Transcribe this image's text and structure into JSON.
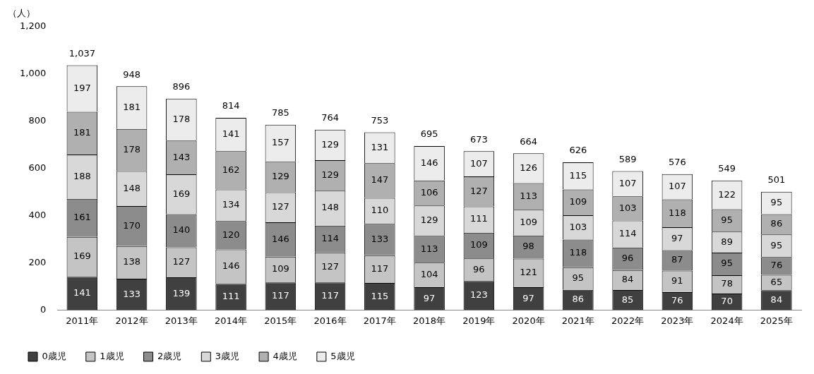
{
  "chart_data": {
    "type": "bar",
    "stacked": true,
    "ylabel": "（人）",
    "categories": [
      "2011年",
      "2012年",
      "2013年",
      "2014年",
      "2015年",
      "2016年",
      "2017年",
      "2018年",
      "2019年",
      "2020年",
      "2021年",
      "2022年",
      "2023年",
      "2024年",
      "2025年"
    ],
    "series": [
      {
        "name": "0歳児",
        "color": "#404040",
        "values": [
          141,
          133,
          139,
          111,
          117,
          117,
          115,
          97,
          123,
          97,
          86,
          85,
          76,
          70,
          84
        ]
      },
      {
        "name": "1歳児",
        "color": "#c4c4c4",
        "values": [
          169,
          138,
          127,
          146,
          109,
          127,
          117,
          104,
          96,
          121,
          95,
          84,
          91,
          78,
          65
        ]
      },
      {
        "name": "2歳児",
        "color": "#8c8c8c",
        "values": [
          161,
          170,
          140,
          120,
          146,
          114,
          133,
          113,
          109,
          98,
          118,
          96,
          87,
          95,
          76
        ]
      },
      {
        "name": "3歳児",
        "color": "#d8d8d8",
        "values": [
          188,
          148,
          169,
          134,
          127,
          148,
          110,
          129,
          111,
          109,
          103,
          114,
          97,
          89,
          95
        ]
      },
      {
        "name": "4歳児",
        "color": "#b0b0b0",
        "values": [
          181,
          178,
          143,
          162,
          129,
          129,
          147,
          106,
          127,
          113,
          109,
          103,
          118,
          95,
          86
        ]
      },
      {
        "name": "5歳児",
        "color": "#ececec",
        "values": [
          197,
          181,
          178,
          141,
          157,
          129,
          131,
          146,
          107,
          126,
          115,
          107,
          107,
          122,
          95
        ]
      }
    ],
    "totals": [
      "1,037",
      "948",
      "896",
      "814",
      "785",
      "764",
      "753",
      "695",
      "673",
      "664",
      "626",
      "589",
      "576",
      "549",
      "501"
    ],
    "data_labels": true,
    "ylim": [
      0,
      1200
    ],
    "yticks": [
      0,
      200,
      400,
      600,
      800,
      {
        "value": 1000,
        "label": "1,000"
      },
      {
        "value": 1200,
        "label": "1,200"
      }
    ],
    "grid": false,
    "legend": "bottom"
  }
}
